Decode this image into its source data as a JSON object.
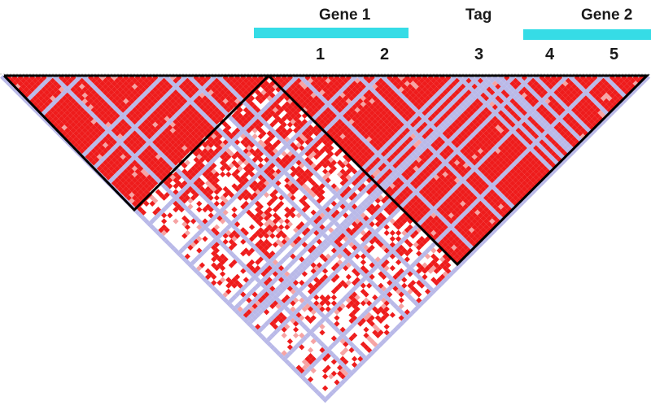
{
  "annotations": {
    "genes": [
      {
        "label": "Gene 1",
        "bar_color": "#36dce6"
      },
      {
        "label": "Gene 2",
        "bar_color": "#36dce6"
      }
    ],
    "tag_label": "Tag",
    "snps": [
      "1",
      "2",
      "3",
      "4",
      "5"
    ]
  },
  "colors": {
    "strong_ld": "#ee1c1c",
    "weak_ld": "#f6a3a3",
    "no_ld": "#ffffff",
    "uninformative": "#b9b9e8",
    "block_outline": "#000000"
  }
}
